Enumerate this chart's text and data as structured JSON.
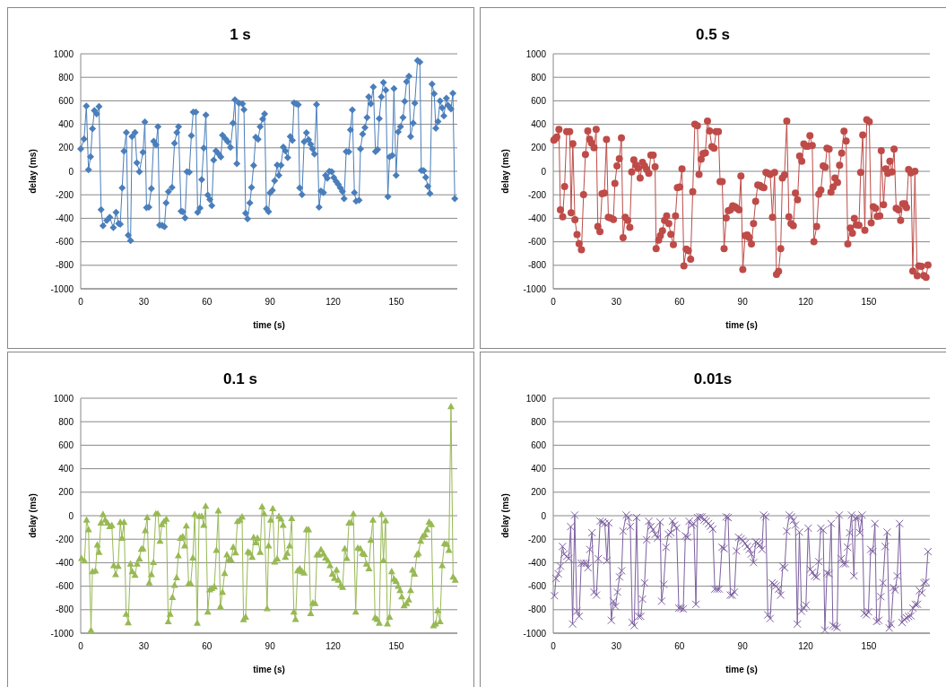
{
  "chart_data": [
    {
      "type": "line",
      "title": "1 s",
      "xlabel": "time (s)",
      "ylabel": "delay (ms)",
      "marker": "diamond",
      "line_style": "solid",
      "grid": "y",
      "color": "#4a7ebb",
      "xlim": [
        0,
        179
      ],
      "ylim": [
        -1000,
        1000
      ],
      "xticks": [
        0,
        30,
        60,
        90,
        120,
        150
      ],
      "yticks": [
        -1000,
        -800,
        -600,
        -400,
        -200,
        0,
        200,
        400,
        600,
        800,
        1000
      ],
      "x": [
        0,
        1.6,
        2.7,
        3.7,
        4.7,
        5.6,
        6.5,
        7.6,
        8.7,
        9.7,
        10.6,
        12.4,
        13.8,
        15.5,
        16.8,
        18,
        18.8,
        19.7,
        20.6,
        21.7,
        22.6,
        23.7,
        24.4,
        25.8,
        26.7,
        27.9,
        29.6,
        30.5,
        31.3,
        32.4,
        33.6,
        34.7,
        35.8,
        36.7,
        37.5,
        38.7,
        39.8,
        40.6,
        41.7,
        43.4,
        44.6,
        45.7,
        46.5,
        47.7,
        48.5,
        49.6,
        50.5,
        51.6,
        52.6,
        53.5,
        54.7,
        55.6,
        56.7,
        57.5,
        58.5,
        59.5,
        60.4,
        61.4,
        62.3,
        63.2,
        64.3,
        65.6,
        66.6,
        67.4,
        68.8,
        69.9,
        71.2,
        72.4,
        73.3,
        74.2,
        75.2,
        76.9,
        77.6,
        78.4,
        79.3,
        80.4,
        81.2,
        82.2,
        83.2,
        84.3,
        85.3,
        86.5,
        87.4,
        88.3,
        89.3,
        90,
        91.1,
        92.2,
        93.4,
        94.2,
        95.2,
        96.3,
        97.3,
        98.4,
        99.6,
        100.6,
        101.4,
        102.4,
        103.4,
        104.1,
        105.2,
        106.2,
        107.3,
        108.3,
        109.3,
        110.2,
        111.1,
        112.1,
        113.3,
        114.2,
        115.4,
        116.4,
        117.2,
        118.2,
        119.3,
        120.3,
        121.4,
        122.4,
        123.4,
        124.4,
        125.2,
        126.2,
        127.4,
        128.2,
        129.1,
        130.1,
        130.9,
        132.3,
        133,
        134,
        135.1,
        136.1,
        136.9,
        137.9,
        139.1,
        140.1,
        141.1,
        141.9,
        142.9,
        143.9,
        145,
        146,
        146.8,
        148.1,
        148.9,
        149.9,
        150.9,
        152,
        153.2,
        154,
        154.9,
        156,
        156.8,
        158,
        158.8,
        160.1,
        161.2,
        161.9,
        163,
        164,
        165,
        166,
        167,
        168,
        168.8,
        169.8,
        170.8,
        171.8,
        172.6,
        173.8,
        174.6,
        176,
        176.9,
        177.8
      ],
      "values": [
        191,
        274,
        556,
        13,
        124,
        362,
        517,
        489,
        551,
        -326,
        -463,
        -417,
        -391,
        -479,
        -349,
        -445,
        -450,
        -142,
        171,
        331,
        -543,
        -590,
        295,
        331,
        72,
        -3,
        163,
        419,
        -310,
        -305,
        -147,
        256,
        225,
        380,
        -458,
        -460,
        -471,
        -269,
        -173,
        -137,
        238,
        331,
        380,
        -339,
        -344,
        -396,
        -3,
        -8,
        303,
        504,
        504,
        -349,
        -313,
        -70,
        199,
        479,
        -202,
        -241,
        -292,
        96,
        173,
        147,
        122,
        308,
        277,
        251,
        204,
        411,
        608,
        65,
        580,
        574,
        525,
        -357,
        -404,
        -269,
        -137,
        49,
        290,
        272,
        380,
        445,
        489,
        -318,
        -344,
        -184,
        -163,
        -80,
        54,
        -34,
        52,
        207,
        173,
        116,
        295,
        264,
        582,
        574,
        567,
        -142,
        -199,
        251,
        329,
        269,
        230,
        191,
        147,
        569,
        -305,
        -168,
        -181,
        -34,
        -60,
        0,
        -3,
        -54,
        -85,
        -111,
        -142,
        -171,
        -233,
        168,
        166,
        354,
        523,
        -181,
        -253,
        -246,
        191,
        316,
        373,
        458,
        634,
        574,
        717,
        168,
        186,
        448,
        634,
        755,
        691,
        -215,
        122,
        135,
        704,
        -34,
        336,
        380,
        458,
        595,
        763,
        810,
        295,
        411,
        580,
        942,
        929,
        8,
        5,
        -52,
        -127,
        -189,
        742,
        660,
        367,
        424,
        600,
        541,
        471,
        623,
        561,
        530,
        665,
        -233
      ]
    },
    {
      "type": "line",
      "title": "0.5 s",
      "xlabel": "time (s)",
      "ylabel": "delay (ms)",
      "marker": "circle",
      "line_style": "solid",
      "grid": "y",
      "color": "#be4b48",
      "xlim": [
        0,
        179
      ],
      "ylim": [
        -1000,
        1000
      ],
      "xticks": [
        0,
        30,
        60,
        90,
        120,
        150
      ],
      "yticks": [
        -1000,
        -800,
        -600,
        -400,
        -200,
        0,
        200,
        400,
        600,
        800,
        1000
      ],
      "x": [
        0.3,
        1,
        1.7,
        2.7,
        3.4,
        4.5,
        5.4,
        6.4,
        7.8,
        8.5,
        9.3,
        10.3,
        11.3,
        12.3,
        13.4,
        14.4,
        15.3,
        16.4,
        17.3,
        18.2,
        19.4,
        20.4,
        21.2,
        22.2,
        23.2,
        24.3,
        25.3,
        26.2,
        27.2,
        28.6,
        29.3,
        30.3,
        31.4,
        32.4,
        33.2,
        34.2,
        35.4,
        36.4,
        37.3,
        38.3,
        39.3,
        40.3,
        41.3,
        42.4,
        43.4,
        44.4,
        45.4,
        46.4,
        47.5,
        48.4,
        48.9,
        50.1,
        50.9,
        51.9,
        52.9,
        53.9,
        54.9,
        55.9,
        57.1,
        58.1,
        59,
        60.1,
        61.2,
        62.1,
        63.2,
        64.2,
        65.3,
        66.3,
        67.3,
        68.5,
        69.3,
        70.3,
        71.2,
        72.3,
        73.3,
        74.3,
        75.4,
        76.4,
        77.4,
        78.5,
        79.3,
        80.3,
        81.2,
        82.2,
        83.2,
        84.2,
        85.3,
        86.3,
        87.3,
        88.3,
        89.2,
        90.1,
        91.2,
        92.2,
        93.2,
        94.2,
        95.2,
        96.2,
        97.2,
        98.2,
        99.1,
        100.1,
        101.1,
        102.1,
        103.1,
        104.2,
        105.2,
        106.1,
        107.1,
        108.1,
        108.9,
        109.9,
        111,
        112,
        113,
        114.1,
        115.1,
        116.1,
        117.1,
        118.1,
        119.1,
        120.1,
        121.1,
        122,
        123.1,
        123.9,
        125.2,
        126.2,
        127.2,
        128.3,
        129.3,
        130.1,
        131.1,
        132,
        133,
        133.9,
        135.1,
        136.1,
        137.1,
        138.2,
        139.2,
        140,
        141.2,
        142.2,
        143.1,
        144.1,
        145.3,
        146.1,
        147.1,
        148.1,
        149,
        150.2,
        151.1,
        152.1,
        153.2,
        154,
        155.2,
        155.9,
        157,
        158,
        159,
        160,
        161,
        162,
        163,
        164.1,
        165.1,
        166.1,
        167.1,
        167.9,
        168.9,
        170,
        170.9,
        171.9,
        173,
        173.8,
        175,
        176.1,
        177.2,
        178.1
      ],
      "values": [
        266,
        279,
        292,
        356,
        -328,
        -387,
        -129,
        338,
        338,
        -353,
        235,
        -413,
        -539,
        -617,
        -668,
        -199,
        144,
        343,
        273,
        240,
        201,
        356,
        -470,
        -513,
        -191,
        -186,
        271,
        -392,
        -397,
        -410,
        -103,
        46,
        106,
        284,
        -565,
        -392,
        -418,
        -477,
        -5,
        98,
        54,
        26,
        -57,
        77,
        46,
        15,
        -18,
        137,
        137,
        39,
        -658,
        -586,
        -547,
        -506,
        -418,
        -379,
        -444,
        -537,
        -624,
        -379,
        -139,
        -134,
        21,
        -805,
        -663,
        -676,
        -748,
        -173,
        400,
        387,
        -26,
        103,
        150,
        157,
        428,
        343,
        209,
        196,
        338,
        338,
        -88,
        -88,
        -658,
        -397,
        -335,
        -328,
        -294,
        -302,
        -315,
        -328,
        -41,
        -836,
        -547,
        -542,
        -565,
        -619,
        -444,
        -255,
        -116,
        -121,
        -134,
        -139,
        -10,
        -18,
        -26,
        -392,
        -10,
        -877,
        -851,
        -658,
        -57,
        -31,
        428,
        -387,
        -444,
        -464,
        -186,
        -243,
        129,
        85,
        232,
        214,
        214,
        304,
        219,
        -599,
        -470,
        -194,
        -160,
        46,
        34,
        196,
        188,
        -178,
        -134,
        -57,
        -95,
        52,
        155,
        341,
        258,
        -619,
        -482,
        -526,
        -400,
        -457,
        -459,
        -10,
        310,
        -501,
        439,
        421,
        -439,
        -302,
        -315,
        -384,
        -379,
        175,
        -284,
        21,
        -18,
        85,
        -5,
        188,
        -315,
        -328,
        -418,
        -276,
        -276,
        -310,
        15,
        -13,
        -849,
        0,
        -890,
        -805,
        -810,
        -888,
        -903,
        -797
      ]
    },
    {
      "type": "line",
      "title": "0.1 s",
      "xlabel": "time (s)",
      "ylabel": "delay (ms)",
      "marker": "triangle",
      "line_style": "solid",
      "grid": "y",
      "color": "#98b954",
      "xlim": [
        0,
        179
      ],
      "ylim": [
        -1000,
        1000
      ],
      "xticks": [
        0,
        30,
        60,
        90,
        120,
        150
      ],
      "yticks": [
        -1000,
        -800,
        -600,
        -400,
        -200,
        0,
        200,
        400,
        600,
        800,
        1000
      ],
      "x": [
        0.4,
        1.8,
        2.8,
        3.7,
        4.9,
        5.6,
        7,
        7.9,
        8.7,
        9.6,
        10.6,
        11.6,
        12.7,
        13.8,
        14.8,
        15.7,
        16.6,
        17.8,
        18.8,
        19.6,
        20.6,
        21.6,
        22.6,
        23.7,
        24.5,
        25.8,
        26.8,
        27.9,
        28.8,
        29.6,
        30.7,
        31.6,
        32.6,
        33.6,
        34.6,
        35.7,
        36.7,
        37.7,
        38.6,
        39.6,
        40.7,
        41.6,
        42.5,
        43.6,
        44.6,
        45.6,
        46.4,
        47.4,
        48.5,
        49.4,
        50.2,
        51.3,
        52.3,
        53.3,
        54.2,
        55.4,
        56.3,
        57.5,
        58.5,
        59.4,
        60.4,
        61.3,
        62.3,
        63.5,
        64.5,
        65.4,
        66.4,
        67.4,
        68.4,
        69.5,
        70.5,
        71.5,
        72.5,
        73.6,
        74.5,
        75.6,
        76.7,
        77.4,
        78.4,
        79.5,
        80.4,
        81.5,
        82.2,
        83.2,
        84,
        85.3,
        86.2,
        87.2,
        88.6,
        89.3,
        90.3,
        91.3,
        92.2,
        93.4,
        94.2,
        95.2,
        96.2,
        97.3,
        98.2,
        99.3,
        100.3,
        101.3,
        102.1,
        103.1,
        104.1,
        105.2,
        106.2,
        107.3,
        108.3,
        109.3,
        110.3,
        111.4,
        112.3,
        113.3,
        114.2,
        115.4,
        116.4,
        117.5,
        118.5,
        119.6,
        120.6,
        121.6,
        122.4,
        123.6,
        124.5,
        125.5,
        126.5,
        127.5,
        128.5,
        129.6,
        130.7,
        131.7,
        132.9,
        133.9,
        134.8,
        135.8,
        137,
        137.9,
        138.9,
        139.9,
        140.9,
        141.9,
        143,
        143.9,
        144.9,
        145.8,
        146.8,
        147.8,
        148.9,
        149.9,
        150.9,
        151.8,
        152.6,
        153.7,
        154.9,
        155.9,
        156.8,
        157.7,
        158.7,
        159.8,
        160.5,
        161.6,
        162.6,
        163.6,
        164.6,
        165.6,
        166.7,
        167.7,
        168.7,
        169.7,
        170.8,
        171.8,
        172.9,
        174,
        175,
        176,
        177,
        178
      ],
      "values": [
        -362,
        -383,
        -34,
        -116,
        -973,
        -473,
        -468,
        -246,
        -310,
        -60,
        13,
        -34,
        -60,
        -91,
        -80,
        -422,
        -499,
        -427,
        -54,
        -189,
        -54,
        -836,
        -908,
        -409,
        -473,
        -504,
        -409,
        -365,
        -282,
        -279,
        -124,
        -13,
        -569,
        -499,
        -396,
        18,
        18,
        -215,
        -72,
        -47,
        -28,
        -900,
        -836,
        -693,
        -590,
        -525,
        -339,
        -189,
        -176,
        -254,
        -85,
        -577,
        -577,
        -357,
        13,
        -913,
        -3,
        -3,
        -78,
        83,
        -817,
        -629,
        -616,
        -603,
        -292,
        44,
        -771,
        -649,
        -489,
        -331,
        -370,
        -375,
        -266,
        -313,
        -47,
        -34,
        -8,
        -882,
        -861,
        -305,
        -316,
        -352,
        -184,
        -228,
        -189,
        -310,
        78,
        18,
        -789,
        -254,
        -34,
        62,
        -391,
        -365,
        -3,
        -26,
        -78,
        -352,
        -318,
        -254,
        -21,
        -817,
        -880,
        -466,
        -448,
        -473,
        -486,
        -116,
        -116,
        -830,
        -740,
        -745,
        -331,
        -331,
        -287,
        -323,
        -357,
        -383,
        -422,
        -494,
        -530,
        -460,
        -546,
        -590,
        -608,
        -279,
        -362,
        -60,
        -60,
        18,
        -817,
        -272,
        -279,
        -318,
        -326,
        -409,
        -448,
        -207,
        -34,
        -867,
        -880,
        -913,
        13,
        -378,
        -41,
        -918,
        -861,
        -473,
        -538,
        -556,
        -598,
        -634,
        -688,
        -763,
        -745,
        -714,
        -634,
        -460,
        -494,
        -331,
        -318,
        -215,
        -173,
        -158,
        -116,
        -52,
        -72,
        -934,
        -918,
        -805,
        -900,
        -422,
        -235,
        -241,
        -292,
        931,
        -520,
        -546
      ]
    },
    {
      "type": "line",
      "title": "0.01s",
      "xlabel": "time (s)",
      "ylabel": "delay (ms)",
      "marker": "cross",
      "line_style": "solid",
      "grid": "y",
      "color": "#7d60a0",
      "xlim": [
        0,
        179
      ],
      "ylim": [
        -1000,
        1000
      ],
      "xticks": [
        0,
        30,
        60,
        90,
        120,
        150
      ],
      "yticks": [
        -1000,
        -800,
        -600,
        -400,
        -200,
        0,
        200,
        400,
        600,
        800,
        1000
      ],
      "x": [
        0.6,
        1.3,
        2.4,
        3.4,
        4.4,
        5.2,
        6.4,
        7.4,
        8.3,
        9.2,
        10.2,
        11.2,
        12.3,
        13.3,
        14.4,
        15.6,
        16.5,
        17.4,
        18.4,
        19.4,
        20.5,
        21.4,
        22.3,
        23.5,
        24.5,
        25.5,
        26.4,
        27.6,
        28.6,
        29.6,
        30.5,
        31.5,
        32.5,
        33.2,
        34.7,
        35.6,
        36.6,
        37.6,
        38.5,
        39.6,
        40.6,
        41.6,
        42.4,
        43.4,
        44.4,
        45.4,
        46.4,
        47.4,
        48.5,
        49.6,
        50.8,
        51.5,
        52.5,
        53.6,
        54.7,
        55.9,
        56.7,
        57.6,
        58.6,
        59.7,
        60.7,
        61.8,
        62.8,
        63.8,
        64.6,
        65.8,
        66.8,
        67.8,
        68.6,
        69.7,
        70.7,
        71.7,
        72.7,
        73.8,
        74.8,
        75.8,
        76.8,
        77.9,
        78.9,
        80.2,
        81.2,
        82.2,
        83.1,
        84.2,
        85.1,
        86.1,
        87.1,
        88.1,
        89.3,
        90.1,
        91.2,
        92.2,
        93.2,
        94.1,
        95.2,
        96.2,
        97.2,
        98.2,
        99.2,
        100,
        101,
        102,
        103.1,
        104,
        105,
        105.9,
        107.1,
        108.1,
        109.1,
        110,
        111,
        112.2,
        113.2,
        114.1,
        115.1,
        116,
        117,
        118,
        119.1,
        120.1,
        121.2,
        122.2,
        123.2,
        124.2,
        125.2,
        126.2,
        127.2,
        128.3,
        129.1,
        130.1,
        131.1,
        132.1,
        132.9,
        133.9,
        134.9,
        135.9,
        136.9,
        137.9,
        138.9,
        139.9,
        140.9,
        141.8,
        142.9,
        143.7,
        144.7,
        145.7,
        146.8,
        147.8,
        148.8,
        149.8,
        150.9,
        151.9,
        152.9,
        153.7,
        154.7,
        155.7,
        156.7,
        157.8,
        158.7,
        159.7,
        160.5,
        161.7,
        162.5,
        163.5,
        164.6,
        165.8,
        166.8,
        167.9,
        168.9,
        170,
        171,
        172.1,
        173.1,
        174.1,
        175.2,
        176.2,
        177.1,
        178.1
      ],
      "values": [
        -681,
        -534,
        -495,
        -430,
        -262,
        -326,
        -347,
        -365,
        -93,
        -922,
        5,
        -813,
        -857,
        -404,
        -404,
        -404,
        -443,
        -287,
        -145,
        -650,
        -676,
        -365,
        -47,
        -54,
        -67,
        -383,
        -62,
        -891,
        -728,
        -772,
        -650,
        -521,
        -469,
        -132,
        5,
        -16,
        -93,
        -909,
        -935,
        -16,
        -857,
        -857,
        -710,
        -572,
        -205,
        -47,
        -93,
        -119,
        -158,
        -189,
        -54,
        -728,
        -585,
        -269,
        -158,
        -145,
        -47,
        -80,
        -106,
        -787,
        -787,
        -793,
        -171,
        -184,
        -47,
        -80,
        -67,
        -754,
        -16,
        -10,
        -10,
        -36,
        -47,
        -67,
        -88,
        -114,
        -624,
        -624,
        -624,
        -269,
        -280,
        -10,
        -16,
        -676,
        -676,
        -650,
        -300,
        -184,
        -197,
        -215,
        -236,
        -262,
        -287,
        -326,
        -399,
        -223,
        -236,
        -249,
        -287,
        5,
        -10,
        -844,
        -875,
        -572,
        -585,
        -598,
        -624,
        -676,
        -430,
        -443,
        -132,
        5,
        -10,
        -41,
        -80,
        -922,
        -140,
        -813,
        -787,
        -761,
        -106,
        -456,
        -482,
        -513,
        -521,
        -391,
        -106,
        -124,
        -974,
        -487,
        -495,
        -67,
        -935,
        -943,
        -953,
        5,
        -365,
        -409,
        -409,
        -269,
        -145,
        5,
        -513,
        -21,
        -16,
        -145,
        5,
        -831,
        -844,
        -818,
        -287,
        -306,
        -67,
        -901,
        -891,
        -689,
        -572,
        -262,
        -140,
        -956,
        -922,
        -611,
        -632,
        -513,
        -67,
        -909,
        -883,
        -870,
        -857,
        -852,
        -787,
        -754,
        -754,
        -637,
        -658,
        -572,
        -565,
        -306
      ]
    }
  ]
}
